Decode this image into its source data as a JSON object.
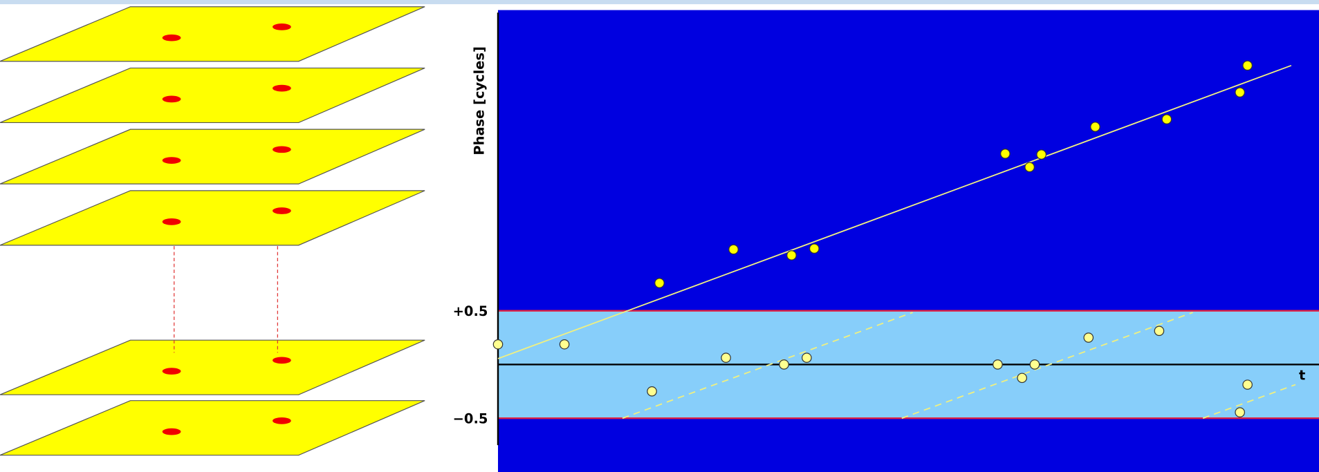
{
  "y_axis_label": "Phase [cycles]",
  "band_ticks": [
    "+0.5",
    "−0.5"
  ],
  "x_axis_label": "t"
}
